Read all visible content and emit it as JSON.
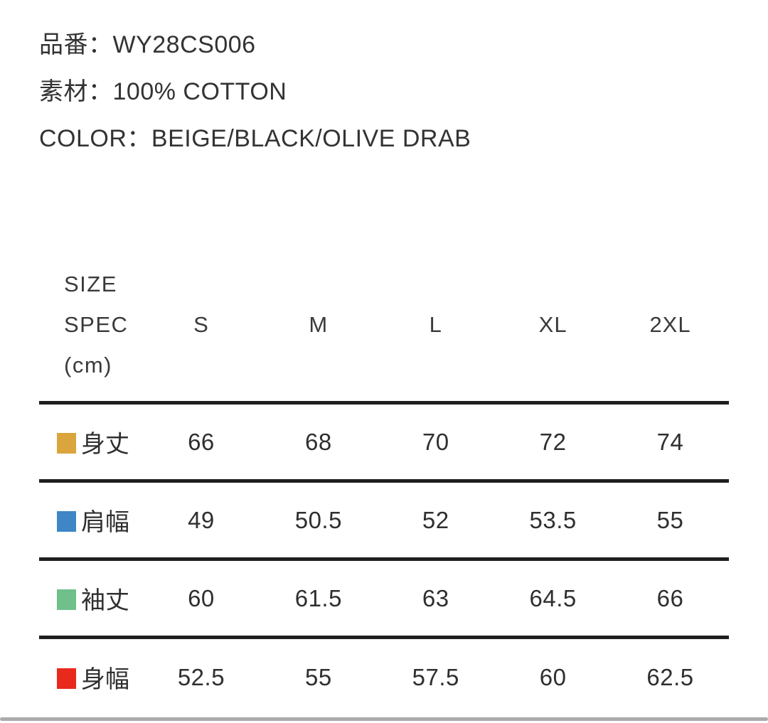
{
  "product": {
    "separator": "：",
    "item": {
      "label": "品番",
      "value": "WY28CS006"
    },
    "material": {
      "label": "素材",
      "value": "100% COTTON"
    },
    "color": {
      "label": "COLOR",
      "value": "BEIGE/BLACK/OLIVE DRAB"
    }
  },
  "size_table": {
    "header_lines": [
      "SIZE",
      "SPEC",
      "(cm)"
    ],
    "columns": [
      "S",
      "M",
      "L",
      "XL",
      "2XL"
    ],
    "rows": [
      {
        "label": "身丈",
        "swatch_color": "#d9a53c",
        "values": [
          "66",
          "68",
          "70",
          "72",
          "74"
        ]
      },
      {
        "label": "肩幅",
        "swatch_color": "#3e86c6",
        "values": [
          "49",
          "50.5",
          "52",
          "53.5",
          "55"
        ]
      },
      {
        "label": "袖丈",
        "swatch_color": "#6fc08a",
        "values": [
          "60",
          "61.5",
          "63",
          "64.5",
          "66"
        ]
      },
      {
        "label": "身幅",
        "swatch_color": "#e8291c",
        "values": [
          "52.5",
          "55",
          "57.5",
          "60",
          "62.5"
        ]
      }
    ],
    "rule_color": "#1e1e1e"
  },
  "footer": {
    "divider_color": "#ababab"
  }
}
